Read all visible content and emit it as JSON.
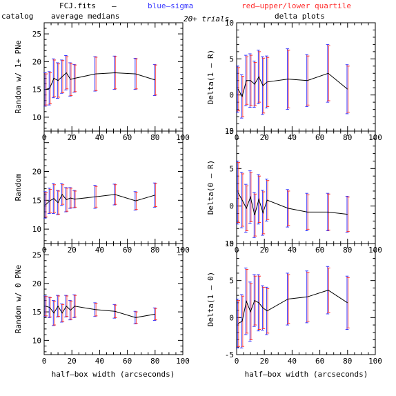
{
  "header": {
    "file": "FCJ.fits",
    "dash": "–",
    "blue_label": "blue–sigma",
    "red_label": "red–upper/lower quartile",
    "catalog": "catalog",
    "avg": "average medians",
    "trials": "20+ trials",
    "delta": "delta plots"
  },
  "colors": {
    "blue": "#3a3aff",
    "red": "#ff3030",
    "line": "#000000"
  },
  "chart_data": [
    {
      "type": "line",
      "ylabel": "Random w/ 1+ PNe",
      "xlim": [
        0,
        100
      ],
      "ylim": [
        7.5,
        27
      ],
      "xticks": [
        0,
        20,
        40,
        60,
        80,
        100
      ],
      "yticks": [
        10,
        15,
        20,
        25
      ],
      "x": [
        1,
        4,
        7,
        10,
        13,
        16,
        19,
        22,
        37,
        51,
        66,
        80
      ],
      "y": [
        15.0,
        15.2,
        17.0,
        16.6,
        17.3,
        18.0,
        16.8,
        17.0,
        17.8,
        18.0,
        17.8,
        16.7
      ],
      "sigma": [
        3.0,
        3.0,
        3.5,
        3.2,
        3.0,
        3.1,
        3.0,
        2.5,
        3.1,
        3.0,
        2.8,
        2.8
      ],
      "quartile": [
        2.8,
        2.8,
        3.3,
        3.0,
        2.9,
        2.9,
        2.9,
        2.4,
        3.0,
        2.9,
        2.7,
        2.7
      ]
    },
    {
      "type": "line",
      "ylabel": "Delta(1 – R)",
      "xlim": [
        0,
        100
      ],
      "ylim": [
        -5,
        10
      ],
      "xticks": [
        0,
        20,
        40,
        60,
        80,
        100
      ],
      "yticks": [
        -5,
        0,
        5,
        10
      ],
      "x": [
        1,
        4,
        7,
        10,
        13,
        16,
        19,
        22,
        37,
        51,
        66,
        80
      ],
      "y": [
        0.8,
        -0.2,
        2.0,
        2.0,
        1.5,
        2.5,
        1.3,
        1.8,
        2.2,
        2.0,
        3.0,
        0.8
      ],
      "sigma": [
        3.2,
        3.0,
        3.5,
        3.7,
        3.2,
        3.7,
        4.0,
        3.6,
        4.2,
        3.6,
        4.0,
        3.4
      ],
      "quartile": [
        3.0,
        2.8,
        3.3,
        3.5,
        3.0,
        3.5,
        3.8,
        3.4,
        4.0,
        3.4,
        3.8,
        3.2
      ]
    },
    {
      "type": "line",
      "ylabel": "Random",
      "xlim": [
        0,
        100
      ],
      "ylim": [
        7.5,
        27
      ],
      "xticks": [
        0,
        20,
        40,
        60,
        80,
        100
      ],
      "yticks": [
        10,
        15,
        20
      ],
      "x": [
        1,
        4,
        7,
        10,
        13,
        16,
        19,
        22,
        37,
        51,
        66,
        80
      ],
      "y": [
        14.2,
        14.9,
        15.3,
        14.6,
        16.0,
        15.1,
        15.4,
        15.2,
        15.6,
        16.0,
        14.9,
        15.9
      ],
      "sigma": [
        2.3,
        2.2,
        2.6,
        2.1,
        1.9,
        2.1,
        1.8,
        1.5,
        2.0,
        1.8,
        1.6,
        2.1
      ],
      "quartile": [
        2.1,
        2.0,
        2.4,
        2.0,
        1.7,
        2.0,
        1.7,
        1.4,
        1.8,
        1.7,
        1.5,
        2.0
      ]
    },
    {
      "type": "line",
      "ylabel": "Delta(0 – R)",
      "xlim": [
        0,
        100
      ],
      "ylim": [
        -5,
        10
      ],
      "xticks": [
        0,
        20,
        40,
        60,
        80,
        100
      ],
      "yticks": [
        -5,
        0,
        5,
        10
      ],
      "x": [
        1,
        4,
        7,
        10,
        13,
        16,
        19,
        22,
        37,
        51,
        66,
        80
      ],
      "y": [
        1.8,
        0.8,
        -0.3,
        1.2,
        -1.2,
        0.9,
        -0.9,
        0.8,
        -0.3,
        -0.8,
        -0.8,
        -1.1
      ],
      "sigma": [
        4.2,
        3.7,
        3.2,
        3.5,
        3.0,
        3.3,
        3.0,
        2.8,
        2.5,
        2.5,
        2.5,
        2.4
      ],
      "quartile": [
        4.0,
        3.5,
        3.0,
        3.3,
        2.8,
        3.1,
        2.8,
        2.6,
        2.3,
        2.3,
        2.4,
        2.3
      ]
    },
    {
      "type": "line",
      "ylabel": "Random w/ 0 PNe",
      "xlim": [
        0,
        100
      ],
      "ylim": [
        7.5,
        27
      ],
      "xticks": [
        0,
        20,
        40,
        60,
        80,
        100
      ],
      "yticks": [
        10,
        15,
        20,
        25
      ],
      "x": [
        1,
        4,
        7,
        10,
        13,
        16,
        19,
        22,
        37,
        51,
        66,
        80
      ],
      "y": [
        16.0,
        15.8,
        14.8,
        16.0,
        14.8,
        16.0,
        15.3,
        16.0,
        15.4,
        15.1,
        14.0,
        14.6
      ],
      "sigma": [
        1.8,
        1.8,
        2.2,
        1.9,
        1.6,
        1.9,
        1.7,
        2.0,
        1.2,
        1.2,
        1.1,
        1.1
      ],
      "quartile": [
        1.7,
        1.7,
        2.1,
        1.8,
        1.5,
        1.8,
        1.6,
        1.9,
        1.1,
        1.1,
        1.0,
        1.0
      ]
    },
    {
      "type": "line",
      "ylabel": "Delta(1 – 0)",
      "xlim": [
        0,
        100
      ],
      "ylim": [
        -5,
        10
      ],
      "xticks": [
        0,
        20,
        40,
        60,
        80,
        100
      ],
      "yticks": [
        -5,
        0,
        5,
        10
      ],
      "x": [
        1,
        4,
        7,
        10,
        13,
        16,
        19,
        22,
        37,
        51,
        66,
        80
      ],
      "y": [
        -0.8,
        -0.5,
        2.2,
        0.8,
        2.3,
        2.0,
        1.3,
        0.9,
        2.5,
        2.8,
        3.7,
        2.0
      ],
      "sigma": [
        3.3,
        3.6,
        4.5,
        4.0,
        3.5,
        3.8,
        3.0,
        3.2,
        3.5,
        3.5,
        3.2,
        3.6
      ],
      "quartile": [
        3.1,
        3.4,
        4.3,
        3.8,
        3.3,
        3.6,
        2.8,
        3.0,
        3.3,
        3.3,
        3.0,
        3.4
      ]
    }
  ],
  "xlabel": "half–box width (arcseconds)"
}
